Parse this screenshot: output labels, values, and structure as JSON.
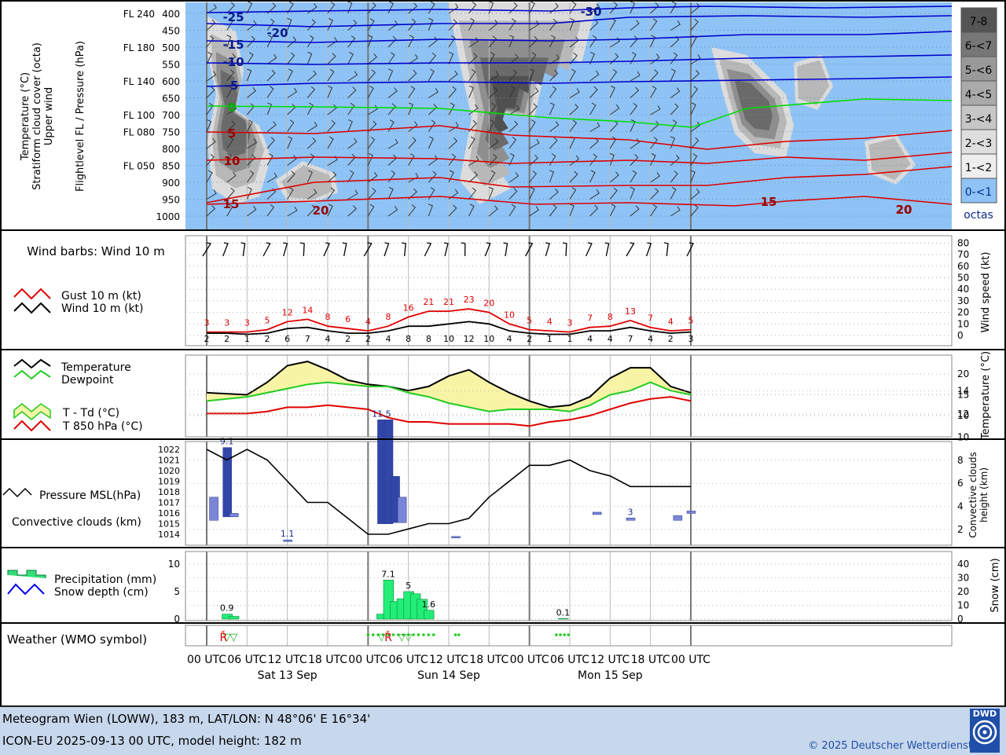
{
  "panels": {
    "upper": {
      "title_lines": [
        "Temperature (°C)",
        "Stratiform cloud cover (octa)",
        "Upper wind"
      ],
      "axis_title": "Flightlevel FL / Pressure (hPa)",
      "levels": [
        {
          "fl": "FL 240",
          "hpa": "400"
        },
        {
          "fl": "",
          "hpa": "450"
        },
        {
          "fl": "FL 180",
          "hpa": "500"
        },
        {
          "fl": "",
          "hpa": "550"
        },
        {
          "fl": "FL 140",
          "hpa": "600"
        },
        {
          "fl": "",
          "hpa": "650"
        },
        {
          "fl": "FL 100",
          "hpa": "700"
        },
        {
          "fl": "FL 080",
          "hpa": "750"
        },
        {
          "fl": "",
          "hpa": "800"
        },
        {
          "fl": "FL 050",
          "hpa": "850"
        },
        {
          "fl": "",
          "hpa": "900"
        },
        {
          "fl": "",
          "hpa": "950"
        },
        {
          "fl": "",
          "hpa": "1000"
        }
      ],
      "isotherm_labels": [
        "-30",
        "-25",
        "-20",
        "-15",
        "-10",
        "-5",
        "0",
        "5",
        "10",
        "15",
        "20",
        "15",
        "20",
        "20"
      ],
      "cloud_legend": [
        "7-8",
        "6-<7",
        "5-<6",
        "4-<5",
        "3-<4",
        "2-<3",
        "1-<2",
        "0-<1",
        "octas"
      ]
    },
    "wind": {
      "title": "Wind barbs: Wind 10 m",
      "legend_gust": "Gust 10 m (kt)",
      "legend_wind": "Wind 10 m (kt)",
      "axis_title": "Wind speed (kt)",
      "ticks": [
        "80",
        "70",
        "60",
        "50",
        "40",
        "30",
        "20",
        "10",
        "0"
      ]
    },
    "temp": {
      "legend_temp": "Temperature",
      "legend_dew": "Dewpoint",
      "legend_spread": "T - Td (°C)",
      "legend_t850": "T 850 hPa (°C)",
      "axis_title": "Temperature (°C)",
      "ticks": [
        "20",
        "15",
        "10"
      ]
    },
    "pressure": {
      "legend_pressure": "Pressure MSL(hPa)",
      "legend_conv": "Convective clouds (km)",
      "left_ticks": [
        "1022",
        "1021",
        "1020",
        "1019",
        "1018",
        "1017",
        "1016",
        "1015",
        "1014"
      ],
      "right_ticks": [
        "14",
        "12",
        "10",
        "8",
        "6",
        "4",
        "2"
      ],
      "axis_title_lines": [
        "Convective clouds",
        "height (km)"
      ]
    },
    "precip": {
      "legend_precip": "Precipitation (mm)",
      "legend_snow": "Snow depth (cm)",
      "left_ticks": [
        "10",
        "5",
        "0"
      ],
      "right_ticks": [
        "40",
        "30",
        "20",
        "10",
        "0"
      ],
      "axis_title": "Snow (cm)"
    },
    "weather": {
      "title": "Weather (WMO symbol)"
    }
  },
  "time_axis": {
    "labels": [
      "00 UTC",
      "06 UTC",
      "12 UTC",
      "18 UTC",
      "00 UTC",
      "06 UTC",
      "12 UTC",
      "18 UTC",
      "00 UTC",
      "06 UTC",
      "12 UTC",
      "18 UTC",
      "00 UTC"
    ],
    "days": [
      "Sat 13 Sep",
      "Sun 14 Sep",
      "Mon 15 Sep"
    ]
  },
  "footer": {
    "line1": "Meteogram Wien (LOWW), 183 m, LAT/LON: N 48°06' E 16°34'",
    "line2": "ICON-EU 2025-09-13 00 UTC, model height: 182 m",
    "copyright": "© 2025 Deutscher Wetterdienst",
    "logo": "DWD"
  },
  "chart_data": [
    {
      "type": "line",
      "name": "wind",
      "x_hours": [
        0,
        3,
        6,
        9,
        12,
        15,
        18,
        21,
        24,
        27,
        30,
        33,
        36,
        39,
        42,
        45,
        48,
        51,
        54,
        57,
        60,
        63,
        66,
        69,
        72
      ],
      "series": [
        {
          "name": "Gust 10 m (kt)",
          "values": [
            3,
            3,
            3,
            5,
            12,
            14,
            8,
            6,
            4,
            8,
            16,
            21,
            21,
            23,
            20,
            10,
            5,
            4,
            3,
            7,
            8,
            13,
            7,
            4,
            5
          ]
        },
        {
          "name": "Wind 10 m (kt)",
          "values": [
            2,
            2,
            1,
            2,
            6,
            7,
            4,
            2,
            2,
            4,
            8,
            8,
            10,
            12,
            10,
            4,
            2,
            1,
            1,
            4,
            4,
            7,
            4,
            2,
            3
          ]
        }
      ],
      "ylim": [
        0,
        80
      ]
    },
    {
      "type": "area",
      "name": "temperature",
      "x_hours": [
        0,
        6,
        9,
        12,
        15,
        18,
        21,
        24,
        27,
        30,
        33,
        36,
        39,
        42,
        45,
        48,
        51,
        54,
        57,
        60,
        63,
        66,
        69,
        72
      ],
      "series": [
        {
          "name": "Temperature",
          "values": [
            15.5,
            15,
            18,
            22,
            23,
            21,
            18.5,
            17.5,
            17,
            16,
            17,
            19.5,
            21,
            18,
            15.5,
            13.5,
            12,
            12.5,
            14.5,
            19,
            21.5,
            21.5,
            17,
            15.5
          ]
        },
        {
          "name": "Dewpoint",
          "values": [
            13.5,
            14.5,
            15.5,
            16.5,
            17.5,
            18,
            17.5,
            17,
            17,
            15.5,
            14.5,
            13,
            12,
            11,
            11.5,
            11.5,
            11.5,
            11,
            12.5,
            15,
            16,
            18,
            16,
            15
          ]
        },
        {
          "name": "T 850 hPa (°C)",
          "values": [
            10.5,
            10.5,
            11,
            12,
            12,
            12.5,
            12,
            11.5,
            9.5,
            8.5,
            8.5,
            8,
            8,
            8,
            8,
            7.5,
            8.5,
            9,
            10,
            11.5,
            13,
            14,
            14.5,
            13.5
          ]
        }
      ],
      "ylim": [
        6,
        26
      ]
    },
    {
      "type": "line",
      "name": "pressure",
      "x_hours": [
        0,
        3,
        6,
        9,
        12,
        15,
        18,
        21,
        24,
        27,
        30,
        33,
        36,
        39,
        42,
        45,
        48,
        51,
        54,
        57,
        60,
        63,
        66,
        69,
        72
      ],
      "series": [
        {
          "name": "Pressure MSL(hPa)",
          "values": [
            1022,
            1021,
            1022,
            1021,
            1019,
            1017,
            1017,
            1015.5,
            1014,
            1014,
            1014.5,
            1015,
            1015,
            1015.5,
            1017.5,
            1019,
            1020.5,
            1020.5,
            1021,
            1020,
            1019.5,
            1018.5,
            1018.5,
            1018.5,
            1018.5
          ]
        }
      ],
      "ylim": [
        1013,
        1023
      ]
    },
    {
      "type": "bar",
      "name": "convective clouds",
      "bars": [
        {
          "x": 1,
          "value": 4.8,
          "base": 2.8
        },
        {
          "x": 3,
          "value": 9.1,
          "base": 3.1,
          "label": "9.1"
        },
        {
          "x": 4,
          "value": 3.4,
          "base": 3.1
        },
        {
          "x": 12,
          "value": 1.1,
          "base": 1,
          "label": "1.1"
        },
        {
          "x": 26,
          "value": 11.5,
          "base": 2.5,
          "label": "11.5"
        },
        {
          "x": 27,
          "value": 11.5,
          "base": 2.5
        },
        {
          "x": 28,
          "value": 6.6,
          "base": 2.6
        },
        {
          "x": 29,
          "value": 4.8,
          "base": 2.6
        },
        {
          "x": 37,
          "value": 1.4,
          "base": 1.3
        },
        {
          "x": 58,
          "value": 3.5,
          "base": 3.3
        },
        {
          "x": 63,
          "value": 3,
          "base": 2.8,
          "label": "3"
        },
        {
          "x": 70,
          "value": 3.2,
          "base": 2.8
        },
        {
          "x": 72,
          "value": 3.6,
          "base": 3.4
        }
      ],
      "ylim": [
        0,
        14
      ]
    },
    {
      "type": "bar",
      "name": "precipitation",
      "bars": [
        {
          "x": 3,
          "value": 0.9,
          "label": "0.9"
        },
        {
          "x": 4,
          "value": 0.5
        },
        {
          "x": 26,
          "value": 0.9
        },
        {
          "x": 27,
          "value": 7.1,
          "label": "7.1"
        },
        {
          "x": 28,
          "value": 3.2
        },
        {
          "x": 29,
          "value": 3.7
        },
        {
          "x": 30,
          "value": 5,
          "label": "5"
        },
        {
          "x": 31,
          "value": 4.6
        },
        {
          "x": 32,
          "value": 3.6
        },
        {
          "x": 33,
          "value": 1.6,
          "label": "1.6"
        },
        {
          "x": 53,
          "value": 0.1,
          "label": "0.1"
        }
      ],
      "ylim": [
        0,
        12
      ]
    }
  ]
}
